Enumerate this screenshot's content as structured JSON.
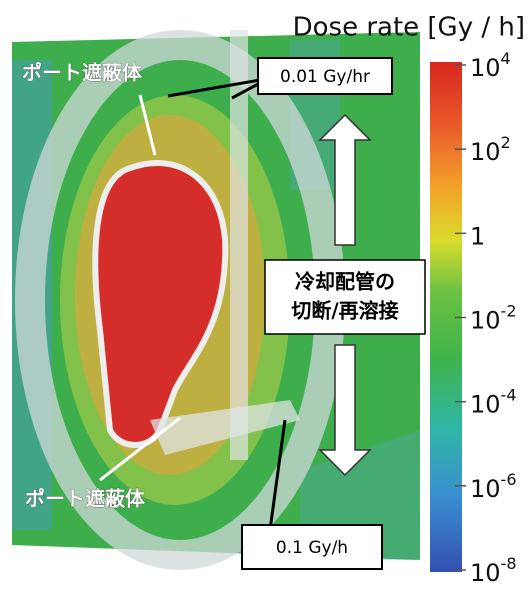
{
  "colorbar": {
    "title": "Dose rate [Gy / h]",
    "log_scale": true,
    "range": [
      1e-08,
      10000
    ],
    "ticks": [
      {
        "value": 10000,
        "base": "10",
        "exp": "4"
      },
      {
        "value": 100,
        "base": "10",
        "exp": "2"
      },
      {
        "value": 1,
        "base": "1"
      },
      {
        "value": 0.01,
        "base": "10",
        "exp": "-2"
      },
      {
        "value": 0.0001,
        "base": "10",
        "exp": "-4"
      },
      {
        "value": 1e-06,
        "base": "10",
        "exp": "-6"
      },
      {
        "value": 1e-08,
        "base": "10",
        "exp": "-8"
      }
    ]
  },
  "annotations": {
    "port_shield_top": "ポート遮蔽体",
    "port_shield_bottom": "ポート遮蔽体",
    "dose_top": "0.01 Gy/hr",
    "dose_bottom": "0.1 Gy/h",
    "pipe_line1": "冷却配管の",
    "pipe_line2": "切断/再溶接"
  }
}
